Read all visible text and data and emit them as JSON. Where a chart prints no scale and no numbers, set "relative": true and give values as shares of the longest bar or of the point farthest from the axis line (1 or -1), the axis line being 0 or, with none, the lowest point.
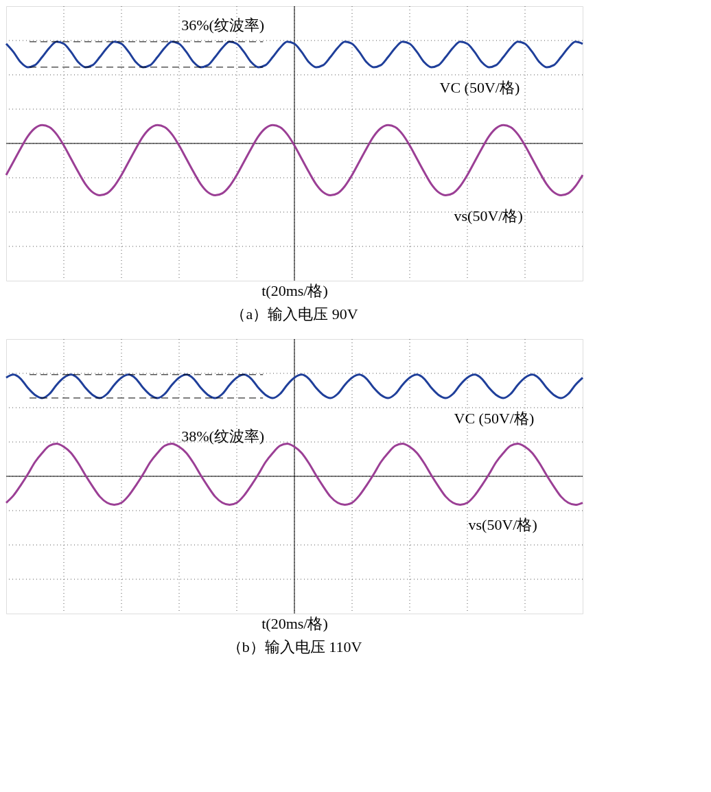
{
  "chart_data": [
    {
      "type": "line",
      "relative": true,
      "grid": true,
      "line_style": "solid",
      "marker": "none",
      "xlabel": "t(20ms/格)",
      "title": "（a）输入电压 90V",
      "annotations": [
        "36%(纹波率)"
      ],
      "ref_lines": [
        {
          "axis": "y",
          "value": 1.0,
          "label": null,
          "line_style": "dashed",
          "color": "#000000"
        },
        {
          "axis": "y",
          "value": 0.75,
          "label": null,
          "line_style": "dashed",
          "color": "#000000"
        }
      ],
      "categories": [
        null,
        null,
        null,
        null,
        null,
        null,
        null,
        null,
        null,
        null,
        null,
        null,
        null,
        null,
        null,
        null,
        null,
        null,
        null,
        null,
        null,
        null,
        null,
        null,
        null,
        null,
        null,
        null,
        null,
        null,
        null,
        null,
        null,
        null,
        null,
        null,
        null,
        null,
        null,
        null,
        null,
        null,
        null,
        null,
        null,
        null,
        null,
        null,
        null,
        null,
        null,
        null,
        null,
        null,
        null,
        null,
        null,
        null,
        null,
        null,
        null,
        null,
        null,
        null,
        null,
        null,
        null,
        null,
        null,
        null,
        null,
        null,
        null,
        null,
        null,
        null,
        null,
        null,
        null,
        null,
        null
      ],
      "series": [
        {
          "name": "VC (50V/格)",
          "color": "#1f3f9a",
          "values": [
            0.98,
            0.9,
            0.8,
            0.75,
            0.77,
            0.85,
            0.94,
            1.0,
            0.98,
            0.9,
            0.8,
            0.75,
            0.77,
            0.85,
            0.94,
            1.0,
            0.98,
            0.9,
            0.8,
            0.75,
            0.77,
            0.85,
            0.94,
            1.0,
            0.98,
            0.9,
            0.8,
            0.75,
            0.77,
            0.85,
            0.94,
            1.0,
            0.98,
            0.9,
            0.8,
            0.75,
            0.77,
            0.85,
            0.94,
            1.0,
            0.98,
            0.9,
            0.8,
            0.75,
            0.77,
            0.85,
            0.94,
            1.0,
            0.98,
            0.9,
            0.8,
            0.75,
            0.77,
            0.85,
            0.94,
            1.0,
            0.98,
            0.9,
            0.8,
            0.75,
            0.77,
            0.85,
            0.94,
            1.0,
            0.98,
            0.9,
            0.8,
            0.75,
            0.77,
            0.85,
            0.94,
            1.0,
            0.98,
            0.9,
            0.8,
            0.75,
            0.77,
            0.85,
            0.94,
            1.0,
            0.98
          ]
        },
        {
          "name": "vs(50V/格)",
          "color": "#9b3f95",
          "values": [
            -0.31,
            -0.18,
            -0.05,
            0.07,
            0.15,
            0.18,
            0.16,
            0.09,
            -0.02,
            -0.15,
            -0.28,
            -0.4,
            -0.48,
            -0.51,
            -0.49,
            -0.42,
            -0.31,
            -0.18,
            -0.05,
            0.07,
            0.15,
            0.18,
            0.16,
            0.09,
            -0.02,
            -0.15,
            -0.28,
            -0.4,
            -0.48,
            -0.51,
            -0.49,
            -0.42,
            -0.31,
            -0.18,
            -0.05,
            0.07,
            0.15,
            0.18,
            0.16,
            0.09,
            -0.02,
            -0.15,
            -0.28,
            -0.4,
            -0.48,
            -0.51,
            -0.49,
            -0.42,
            -0.31,
            -0.18,
            -0.05,
            0.07,
            0.15,
            0.18,
            0.16,
            0.09,
            -0.02,
            -0.15,
            -0.28,
            -0.4,
            -0.48,
            -0.51,
            -0.49,
            -0.42,
            -0.31,
            -0.18,
            -0.05,
            0.07,
            0.15,
            0.18,
            0.16,
            0.09,
            -0.02,
            -0.15,
            -0.28,
            -0.4,
            -0.48,
            -0.51,
            -0.49,
            -0.42,
            -0.31
          ]
        }
      ]
    },
    {
      "type": "line",
      "relative": true,
      "grid": true,
      "line_style": "solid",
      "marker": "none",
      "xlabel": "t(20ms/格)",
      "title": "（b）输入电压 110V",
      "annotations": [
        "38%(纹波率)"
      ],
      "ref_lines": [
        {
          "axis": "y",
          "value": 1.0,
          "label": null,
          "line_style": "dashed",
          "color": "#000000"
        },
        {
          "axis": "y",
          "value": 0.77,
          "label": null,
          "line_style": "dashed",
          "color": "#000000"
        }
      ],
      "categories": [
        null,
        null,
        null,
        null,
        null,
        null,
        null,
        null,
        null,
        null,
        null,
        null,
        null,
        null,
        null,
        null,
        null,
        null,
        null,
        null,
        null,
        null,
        null,
        null,
        null,
        null,
        null,
        null,
        null,
        null,
        null,
        null,
        null,
        null,
        null,
        null,
        null,
        null,
        null,
        null,
        null,
        null,
        null,
        null,
        null,
        null,
        null,
        null,
        null,
        null,
        null,
        null,
        null,
        null,
        null,
        null,
        null,
        null,
        null,
        null,
        null,
        null,
        null,
        null,
        null,
        null,
        null,
        null,
        null,
        null,
        null,
        null,
        null,
        null,
        null,
        null,
        null,
        null,
        null,
        null,
        null
      ],
      "series": [
        {
          "name": "VC (50V/格)",
          "color": "#1f3f9a",
          "values": [
            0.97,
            1.0,
            0.96,
            0.87,
            0.8,
            0.77,
            0.81,
            0.9,
            0.97,
            1.0,
            0.96,
            0.87,
            0.8,
            0.77,
            0.81,
            0.9,
            0.97,
            1.0,
            0.96,
            0.87,
            0.8,
            0.77,
            0.81,
            0.9,
            0.97,
            1.0,
            0.96,
            0.87,
            0.8,
            0.77,
            0.81,
            0.9,
            0.97,
            1.0,
            0.96,
            0.87,
            0.8,
            0.77,
            0.81,
            0.9,
            0.97,
            1.0,
            0.96,
            0.87,
            0.8,
            0.77,
            0.81,
            0.9,
            0.97,
            1.0,
            0.96,
            0.87,
            0.8,
            0.77,
            0.81,
            0.9,
            0.97,
            1.0,
            0.96,
            0.87,
            0.8,
            0.77,
            0.81,
            0.9,
            0.97,
            1.0,
            0.96,
            0.87,
            0.8,
            0.77,
            0.81,
            0.9,
            0.97,
            1.0,
            0.96,
            0.87,
            0.8,
            0.77,
            0.81,
            0.9,
            0.97
          ]
        },
        {
          "name": "vs(50V/格)",
          "color": "#9b3f95",
          "values": [
            -0.26,
            -0.19,
            -0.09,
            0.02,
            0.14,
            0.23,
            0.3,
            0.32,
            0.29,
            0.23,
            0.13,
            0.01,
            -0.1,
            -0.2,
            -0.26,
            -0.28,
            -0.26,
            -0.19,
            -0.09,
            0.02,
            0.14,
            0.23,
            0.3,
            0.32,
            0.29,
            0.23,
            0.13,
            0.01,
            -0.1,
            -0.2,
            -0.26,
            -0.28,
            -0.26,
            -0.19,
            -0.09,
            0.02,
            0.14,
            0.23,
            0.3,
            0.32,
            0.29,
            0.23,
            0.13,
            0.01,
            -0.1,
            -0.2,
            -0.26,
            -0.28,
            -0.26,
            -0.19,
            -0.09,
            0.02,
            0.14,
            0.23,
            0.3,
            0.32,
            0.29,
            0.23,
            0.13,
            0.01,
            -0.1,
            -0.2,
            -0.26,
            -0.28,
            -0.26,
            -0.19,
            -0.09,
            0.02,
            0.14,
            0.23,
            0.3,
            0.32,
            0.29,
            0.23,
            0.13,
            0.01,
            -0.1,
            -0.2,
            -0.26,
            -0.28,
            -0.26
          ]
        }
      ]
    }
  ]
}
